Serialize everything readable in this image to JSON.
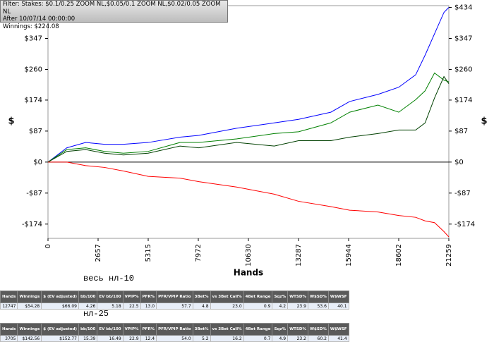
{
  "filter_box": {
    "lines": [
      "Filter: Stakes: $0.1/0.25 ZOOM NL,$0.05/0.1 ZOOM NL,$0.02/0.05 ZOOM NL",
      "After 10/07/14 00:00:00",
      "Winnings: $224.08"
    ]
  },
  "chart_data": {
    "type": "line",
    "xlabel": "Hands",
    "ylabel": "$",
    "x": [
      0,
      1000,
      2000,
      3000,
      4000,
      5315,
      7000,
      8000,
      10000,
      12000,
      13287,
      15000,
      16000,
      17500,
      18602,
      19500,
      20000,
      20500,
      21000,
      21259
    ],
    "series": [
      {
        "color": "#0000ff",
        "values": [
          0,
          40,
          55,
          50,
          50,
          55,
          70,
          75,
          95,
          110,
          120,
          140,
          170,
          190,
          210,
          245,
          300,
          360,
          420,
          434
        ]
      },
      {
        "color": "#008000",
        "values": [
          0,
          35,
          40,
          30,
          25,
          30,
          55,
          55,
          65,
          80,
          85,
          110,
          140,
          160,
          140,
          175,
          200,
          250,
          230,
          225
        ]
      },
      {
        "color": "#004000",
        "values": [
          0,
          30,
          35,
          25,
          20,
          25,
          45,
          40,
          55,
          45,
          60,
          60,
          70,
          80,
          90,
          90,
          110,
          180,
          240,
          220
        ]
      },
      {
        "color": "#ff0000",
        "values": [
          0,
          0,
          -10,
          -15,
          -25,
          -40,
          -45,
          -55,
          -70,
          -90,
          -110,
          -125,
          -135,
          -140,
          -150,
          -155,
          -165,
          -170,
          -195,
          -210
        ]
      }
    ],
    "xlim": [
      0,
      21259
    ],
    "xticks": [
      0,
      2657,
      5315,
      7972,
      10630,
      13287,
      15944,
      18602,
      21259
    ],
    "ylim": [
      -214,
      439
    ],
    "yticks": [
      {
        "value": -174,
        "label": "-$174"
      },
      {
        "value": -87,
        "label": "-$87"
      },
      {
        "value": 0,
        "label": "$0"
      },
      {
        "value": 87,
        "label": "$87"
      },
      {
        "value": 174,
        "label": "$174"
      },
      {
        "value": 260,
        "label": "$260"
      },
      {
        "value": 347,
        "label": "$347"
      },
      {
        "value": 434,
        "label": "$434"
      }
    ]
  },
  "tables": [
    {
      "label": "весь нл-10",
      "header": [
        "Hands",
        "Winnings",
        "$ (EV adjusted)",
        "bb/100",
        "EV bb/100",
        "VPIP%",
        "PFR%",
        "PFR/VPIP Ratio",
        "3Bet%",
        "vs 3Bet Call%",
        "4Bet Range",
        "Sqz%",
        "WTSD%",
        "W$SD%",
        "W$WSF"
      ],
      "row": [
        "12747",
        "$54.28",
        "$66.09",
        "4.26",
        "5.18",
        "22.5",
        "13.0",
        "57.7",
        "4.8",
        "23.0",
        "0.9",
        "4.2",
        "23.9",
        "53.6",
        "40.1"
      ]
    },
    {
      "label": "нл-25",
      "header": [
        "Hands",
        "Winnings",
        "$ (EV adjusted)",
        "bb/100",
        "EV bb/100",
        "VPIP%",
        "PFR%",
        "PFR/VPIP Ratio",
        "3Bet%",
        "vs 3Bet Call%",
        "4Bet Range",
        "Sqz%",
        "WTSD%",
        "W$SD%",
        "W$WSF"
      ],
      "row": [
        "3705",
        "$142.56",
        "$152.77",
        "15.39",
        "16.49",
        "22.9",
        "12.4",
        "54.0",
        "5.2",
        "16.2",
        "0.7",
        "4.9",
        "23.2",
        "60.2",
        "41.4"
      ]
    }
  ]
}
